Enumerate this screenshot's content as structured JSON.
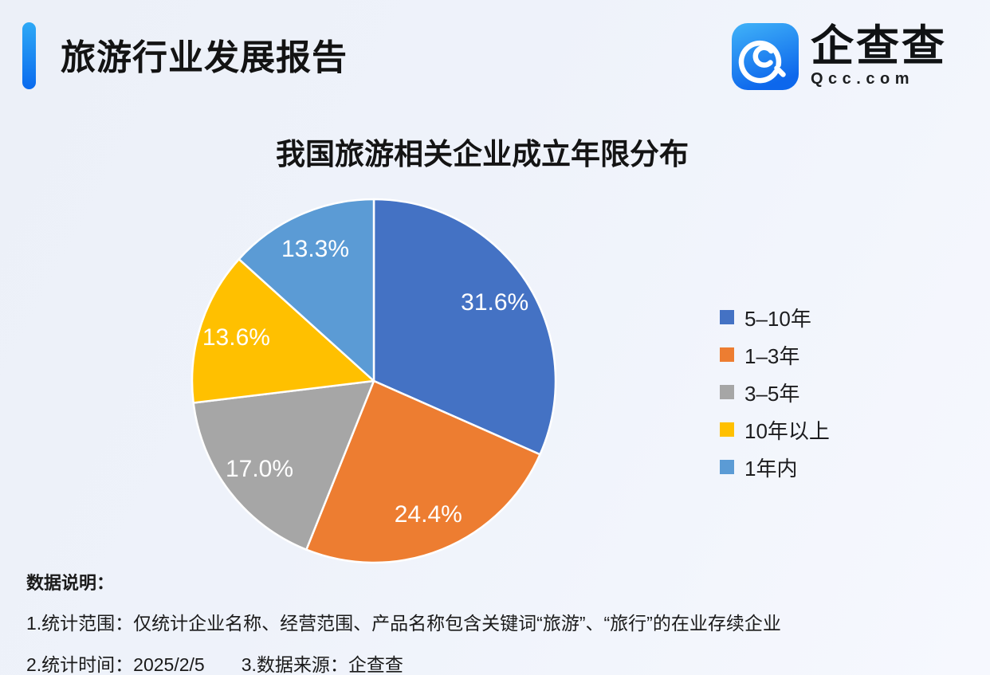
{
  "header": {
    "title": "旅游行业发展报告",
    "accent_color_top": "#2EA9F6",
    "accent_color_bottom": "#0A6AEE"
  },
  "logo": {
    "brand_name": "企查查",
    "domain": "Qcc.com",
    "icon": "qcc-magnifier-icon",
    "icon_color_top": "#41B3F8",
    "icon_color_bottom": "#0D67EC"
  },
  "chart_data": {
    "type": "pie",
    "title": "我国旅游相关企业成立年限分布",
    "categories": [
      "5–10年",
      "1–3年",
      "3–5年",
      "10年以上",
      "1年内"
    ],
    "values": [
      31.6,
      24.4,
      17.0,
      13.6,
      13.3
    ],
    "labels": [
      "31.6%",
      "24.4%",
      "17.0%",
      "13.6%",
      "13.3%"
    ],
    "colors": [
      "#4472C4",
      "#ED7D31",
      "#A6A6A6",
      "#FFC000",
      "#5B9BD5"
    ],
    "start_angle_deg": 0,
    "direction": "clockwise",
    "legend_position": "right",
    "label_color": "#FFFFFF",
    "slice_border_color": "#FFFFFF"
  },
  "notes": {
    "heading": "数据说明：",
    "line1": "1.统计范围：仅统计企业名称、经营范围、产品名称包含关键词“旅游”、“旅行”的在业存续企业",
    "line2_left": "2.统计时间：2025/2/5",
    "line2_right": "3.数据来源：企查查"
  }
}
